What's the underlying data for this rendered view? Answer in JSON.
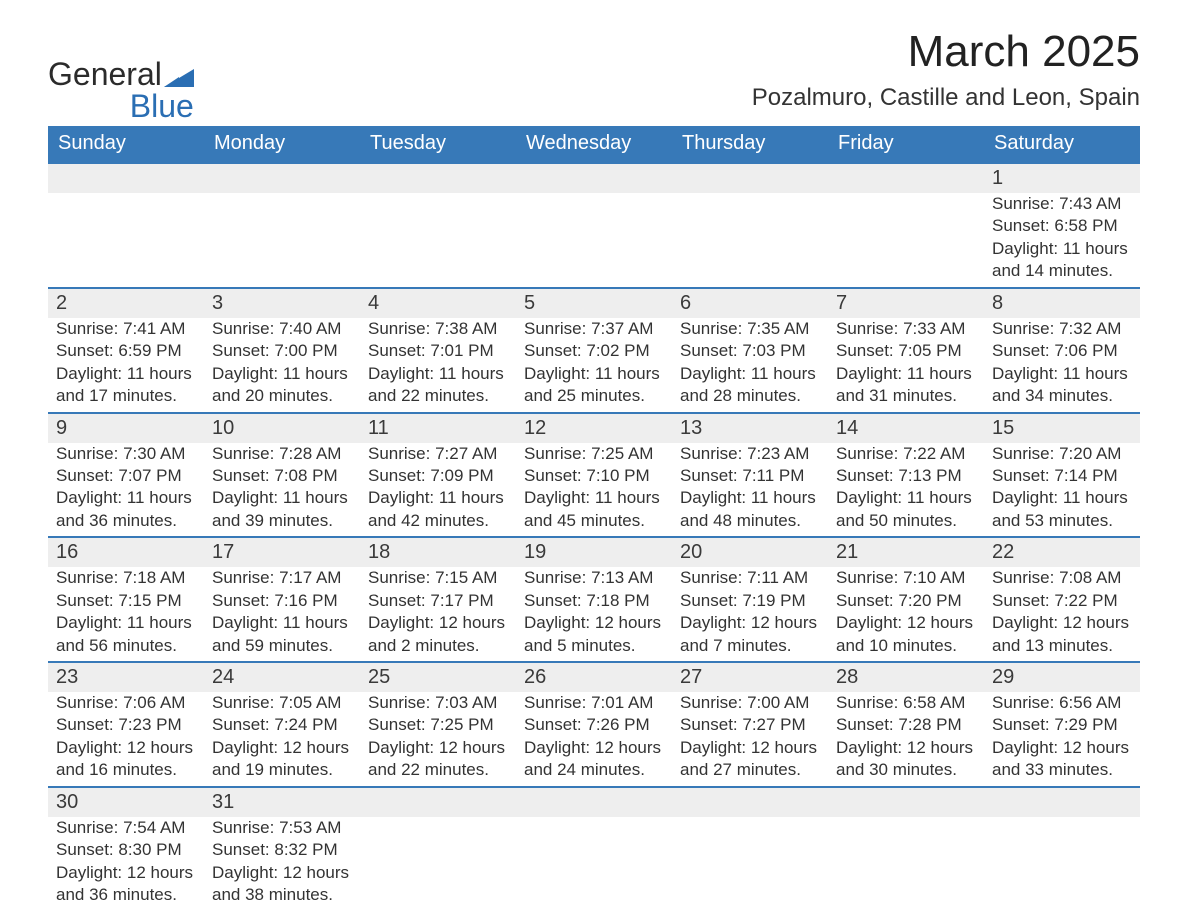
{
  "logo": {
    "text_main": "General",
    "text_sub": "Blue"
  },
  "title": "March 2025",
  "location": "Pozalmuro, Castille and Leon, Spain",
  "colors": {
    "header_bg": "#3779b8",
    "header_text": "#ffffff",
    "daynum_bg": "#eeeeee",
    "row_border": "#3779b8",
    "body_text": "#333333",
    "logo_blue": "#2a6eb3"
  },
  "weekdays": [
    "Sunday",
    "Monday",
    "Tuesday",
    "Wednesday",
    "Thursday",
    "Friday",
    "Saturday"
  ],
  "weeks": [
    [
      null,
      null,
      null,
      null,
      null,
      null,
      {
        "day": "1",
        "sunrise": "Sunrise: 7:43 AM",
        "sunset": "Sunset: 6:58 PM",
        "day1": "Daylight: 11 hours",
        "day2": "and 14 minutes."
      }
    ],
    [
      {
        "day": "2",
        "sunrise": "Sunrise: 7:41 AM",
        "sunset": "Sunset: 6:59 PM",
        "day1": "Daylight: 11 hours",
        "day2": "and 17 minutes."
      },
      {
        "day": "3",
        "sunrise": "Sunrise: 7:40 AM",
        "sunset": "Sunset: 7:00 PM",
        "day1": "Daylight: 11 hours",
        "day2": "and 20 minutes."
      },
      {
        "day": "4",
        "sunrise": "Sunrise: 7:38 AM",
        "sunset": "Sunset: 7:01 PM",
        "day1": "Daylight: 11 hours",
        "day2": "and 22 minutes."
      },
      {
        "day": "5",
        "sunrise": "Sunrise: 7:37 AM",
        "sunset": "Sunset: 7:02 PM",
        "day1": "Daylight: 11 hours",
        "day2": "and 25 minutes."
      },
      {
        "day": "6",
        "sunrise": "Sunrise: 7:35 AM",
        "sunset": "Sunset: 7:03 PM",
        "day1": "Daylight: 11 hours",
        "day2": "and 28 minutes."
      },
      {
        "day": "7",
        "sunrise": "Sunrise: 7:33 AM",
        "sunset": "Sunset: 7:05 PM",
        "day1": "Daylight: 11 hours",
        "day2": "and 31 minutes."
      },
      {
        "day": "8",
        "sunrise": "Sunrise: 7:32 AM",
        "sunset": "Sunset: 7:06 PM",
        "day1": "Daylight: 11 hours",
        "day2": "and 34 minutes."
      }
    ],
    [
      {
        "day": "9",
        "sunrise": "Sunrise: 7:30 AM",
        "sunset": "Sunset: 7:07 PM",
        "day1": "Daylight: 11 hours",
        "day2": "and 36 minutes."
      },
      {
        "day": "10",
        "sunrise": "Sunrise: 7:28 AM",
        "sunset": "Sunset: 7:08 PM",
        "day1": "Daylight: 11 hours",
        "day2": "and 39 minutes."
      },
      {
        "day": "11",
        "sunrise": "Sunrise: 7:27 AM",
        "sunset": "Sunset: 7:09 PM",
        "day1": "Daylight: 11 hours",
        "day2": "and 42 minutes."
      },
      {
        "day": "12",
        "sunrise": "Sunrise: 7:25 AM",
        "sunset": "Sunset: 7:10 PM",
        "day1": "Daylight: 11 hours",
        "day2": "and 45 minutes."
      },
      {
        "day": "13",
        "sunrise": "Sunrise: 7:23 AM",
        "sunset": "Sunset: 7:11 PM",
        "day1": "Daylight: 11 hours",
        "day2": "and 48 minutes."
      },
      {
        "day": "14",
        "sunrise": "Sunrise: 7:22 AM",
        "sunset": "Sunset: 7:13 PM",
        "day1": "Daylight: 11 hours",
        "day2": "and 50 minutes."
      },
      {
        "day": "15",
        "sunrise": "Sunrise: 7:20 AM",
        "sunset": "Sunset: 7:14 PM",
        "day1": "Daylight: 11 hours",
        "day2": "and 53 minutes."
      }
    ],
    [
      {
        "day": "16",
        "sunrise": "Sunrise: 7:18 AM",
        "sunset": "Sunset: 7:15 PM",
        "day1": "Daylight: 11 hours",
        "day2": "and 56 minutes."
      },
      {
        "day": "17",
        "sunrise": "Sunrise: 7:17 AM",
        "sunset": "Sunset: 7:16 PM",
        "day1": "Daylight: 11 hours",
        "day2": "and 59 minutes."
      },
      {
        "day": "18",
        "sunrise": "Sunrise: 7:15 AM",
        "sunset": "Sunset: 7:17 PM",
        "day1": "Daylight: 12 hours",
        "day2": "and 2 minutes."
      },
      {
        "day": "19",
        "sunrise": "Sunrise: 7:13 AM",
        "sunset": "Sunset: 7:18 PM",
        "day1": "Daylight: 12 hours",
        "day2": "and 5 minutes."
      },
      {
        "day": "20",
        "sunrise": "Sunrise: 7:11 AM",
        "sunset": "Sunset: 7:19 PM",
        "day1": "Daylight: 12 hours",
        "day2": "and 7 minutes."
      },
      {
        "day": "21",
        "sunrise": "Sunrise: 7:10 AM",
        "sunset": "Sunset: 7:20 PM",
        "day1": "Daylight: 12 hours",
        "day2": "and 10 minutes."
      },
      {
        "day": "22",
        "sunrise": "Sunrise: 7:08 AM",
        "sunset": "Sunset: 7:22 PM",
        "day1": "Daylight: 12 hours",
        "day2": "and 13 minutes."
      }
    ],
    [
      {
        "day": "23",
        "sunrise": "Sunrise: 7:06 AM",
        "sunset": "Sunset: 7:23 PM",
        "day1": "Daylight: 12 hours",
        "day2": "and 16 minutes."
      },
      {
        "day": "24",
        "sunrise": "Sunrise: 7:05 AM",
        "sunset": "Sunset: 7:24 PM",
        "day1": "Daylight: 12 hours",
        "day2": "and 19 minutes."
      },
      {
        "day": "25",
        "sunrise": "Sunrise: 7:03 AM",
        "sunset": "Sunset: 7:25 PM",
        "day1": "Daylight: 12 hours",
        "day2": "and 22 minutes."
      },
      {
        "day": "26",
        "sunrise": "Sunrise: 7:01 AM",
        "sunset": "Sunset: 7:26 PM",
        "day1": "Daylight: 12 hours",
        "day2": "and 24 minutes."
      },
      {
        "day": "27",
        "sunrise": "Sunrise: 7:00 AM",
        "sunset": "Sunset: 7:27 PM",
        "day1": "Daylight: 12 hours",
        "day2": "and 27 minutes."
      },
      {
        "day": "28",
        "sunrise": "Sunrise: 6:58 AM",
        "sunset": "Sunset: 7:28 PM",
        "day1": "Daylight: 12 hours",
        "day2": "and 30 minutes."
      },
      {
        "day": "29",
        "sunrise": "Sunrise: 6:56 AM",
        "sunset": "Sunset: 7:29 PM",
        "day1": "Daylight: 12 hours",
        "day2": "and 33 minutes."
      }
    ],
    [
      {
        "day": "30",
        "sunrise": "Sunrise: 7:54 AM",
        "sunset": "Sunset: 8:30 PM",
        "day1": "Daylight: 12 hours",
        "day2": "and 36 minutes."
      },
      {
        "day": "31",
        "sunrise": "Sunrise: 7:53 AM",
        "sunset": "Sunset: 8:32 PM",
        "day1": "Daylight: 12 hours",
        "day2": "and 38 minutes."
      },
      null,
      null,
      null,
      null,
      null
    ]
  ]
}
